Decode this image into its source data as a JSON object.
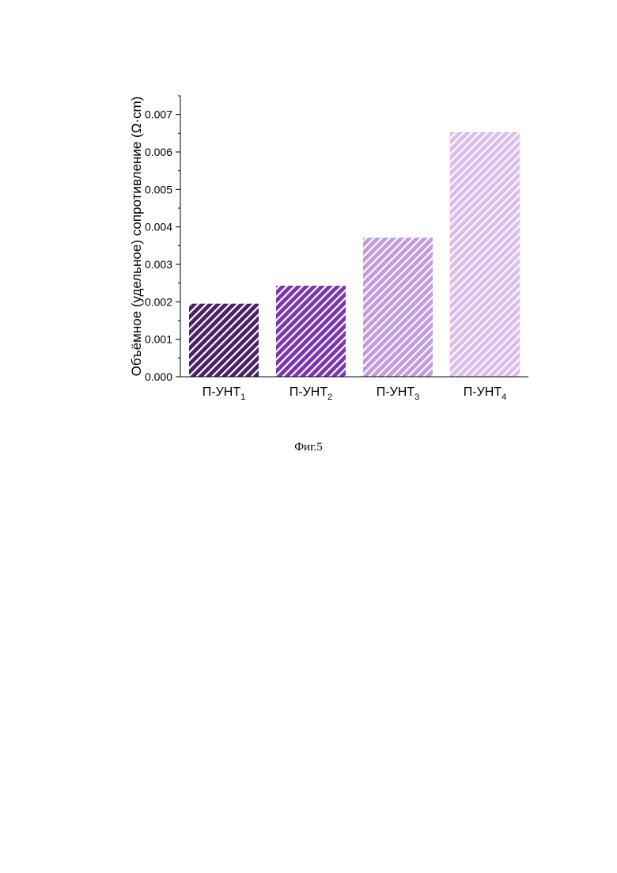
{
  "chart_data": {
    "type": "bar",
    "categories": [
      {
        "base": "П-УНТ",
        "sub": "1"
      },
      {
        "base": "П-УНТ",
        "sub": "2"
      },
      {
        "base": "П-УНТ",
        "sub": "3"
      },
      {
        "base": "П-УНТ",
        "sub": "4"
      }
    ],
    "values": [
      0.00195,
      0.00243,
      0.00371,
      0.00653
    ],
    "colors": [
      "#4a1f66",
      "#7b35b0",
      "#c39ae0",
      "#dcbcef"
    ],
    "hatch": "diagonal-white",
    "ylabel": "Объёмное (удельное) сопротивление (Ω·cm)",
    "xlabel": "",
    "ylim": [
      0,
      0.0075
    ],
    "yticks": [
      "0.000",
      "0.001",
      "0.002",
      "0.003",
      "0.004",
      "0.005",
      "0.006",
      "0.007"
    ],
    "grid": false
  },
  "caption": "Фиг.5"
}
